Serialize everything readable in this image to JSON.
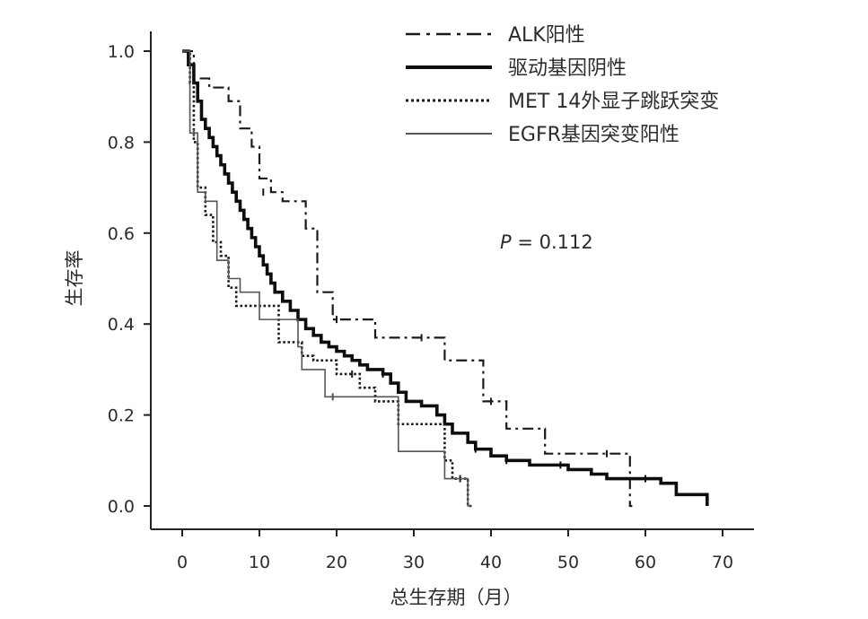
{
  "chart_data": {
    "type": "line",
    "xlabel": "总生存期（月）",
    "ylabel": "生存率",
    "xlim": [
      0,
      75
    ],
    "ylim": [
      0,
      1.05
    ],
    "x_ticks": [
      "0",
      "10",
      "20",
      "30",
      "40",
      "50",
      "60",
      "70"
    ],
    "y_ticks": [
      "0.0",
      "0.2",
      "0.4",
      "0.6",
      "0.8",
      "1.0"
    ],
    "grid": false,
    "legend_position": "top-right",
    "annotation": {
      "label": "P",
      "text": " = 0.112"
    },
    "series": [
      {
        "name": "ALK阳性",
        "style": "dashdot",
        "color": "#1a1a1a",
        "steps": [
          [
            0,
            1.0
          ],
          [
            1.5,
            0.94
          ],
          [
            3.5,
            0.92
          ],
          [
            6,
            0.89
          ],
          [
            7.5,
            0.83
          ],
          [
            9,
            0.79
          ],
          [
            10,
            0.72
          ],
          [
            11.5,
            0.69
          ],
          [
            13,
            0.67
          ],
          [
            16,
            0.61
          ],
          [
            17.5,
            0.47
          ],
          [
            19.5,
            0.41
          ],
          [
            25,
            0.37
          ],
          [
            34,
            0.32
          ],
          [
            39,
            0.23
          ],
          [
            42,
            0.17
          ],
          [
            47,
            0.115
          ],
          [
            58,
            0.0
          ],
          [
            58.3,
            0.0
          ]
        ],
        "censors": [
          [
            10.5,
            0.69
          ],
          [
            20,
            0.41
          ],
          [
            31,
            0.37
          ],
          [
            40,
            0.23
          ],
          [
            55,
            0.115
          ]
        ]
      },
      {
        "name": "驱动基因阴性",
        "style": "solid-thick",
        "color": "#0d0d0d",
        "steps": [
          [
            0,
            1.0
          ],
          [
            0.8,
            0.97
          ],
          [
            1.5,
            0.93
          ],
          [
            2,
            0.89
          ],
          [
            2.5,
            0.85
          ],
          [
            3,
            0.83
          ],
          [
            3.5,
            0.81
          ],
          [
            4,
            0.79
          ],
          [
            4.5,
            0.77
          ],
          [
            5,
            0.75
          ],
          [
            5.5,
            0.73
          ],
          [
            6,
            0.71
          ],
          [
            6.5,
            0.69
          ],
          [
            7,
            0.67
          ],
          [
            7.5,
            0.65
          ],
          [
            8,
            0.63
          ],
          [
            8.5,
            0.61
          ],
          [
            9,
            0.59
          ],
          [
            9.5,
            0.57
          ],
          [
            10,
            0.55
          ],
          [
            10.5,
            0.53
          ],
          [
            11,
            0.51
          ],
          [
            11.5,
            0.49
          ],
          [
            12,
            0.47
          ],
          [
            13,
            0.45
          ],
          [
            14,
            0.43
          ],
          [
            15,
            0.41
          ],
          [
            16,
            0.39
          ],
          [
            17,
            0.375
          ],
          [
            18,
            0.36
          ],
          [
            19,
            0.35
          ],
          [
            20,
            0.34
          ],
          [
            21,
            0.33
          ],
          [
            22,
            0.32
          ],
          [
            23,
            0.31
          ],
          [
            24,
            0.3
          ],
          [
            26,
            0.29
          ],
          [
            27,
            0.27
          ],
          [
            28,
            0.25
          ],
          [
            29,
            0.23
          ],
          [
            31,
            0.22
          ],
          [
            33,
            0.2
          ],
          [
            34,
            0.18
          ],
          [
            35,
            0.16
          ],
          [
            37,
            0.14
          ],
          [
            38,
            0.125
          ],
          [
            40,
            0.11
          ],
          [
            42,
            0.1
          ],
          [
            45,
            0.09
          ],
          [
            50,
            0.08
          ],
          [
            53,
            0.07
          ],
          [
            55,
            0.06
          ],
          [
            62,
            0.05
          ],
          [
            64,
            0.025
          ],
          [
            68,
            0.0
          ]
        ],
        "censors": [
          [
            26,
            0.29
          ],
          [
            38,
            0.125
          ],
          [
            42,
            0.1
          ],
          [
            49,
            0.09
          ],
          [
            60,
            0.06
          ]
        ]
      },
      {
        "name": "MET 14外显子跳跃突变",
        "style": "dotted",
        "color": "#1a1a1a",
        "steps": [
          [
            0,
            1.0
          ],
          [
            1,
            0.93
          ],
          [
            1.5,
            0.8
          ],
          [
            2,
            0.7
          ],
          [
            3,
            0.64
          ],
          [
            4,
            0.58
          ],
          [
            5,
            0.55
          ],
          [
            6,
            0.48
          ],
          [
            7,
            0.44
          ],
          [
            12.5,
            0.36
          ],
          [
            15.5,
            0.33
          ],
          [
            17,
            0.32
          ],
          [
            20,
            0.29
          ],
          [
            23,
            0.26
          ],
          [
            25,
            0.23
          ],
          [
            28,
            0.18
          ],
          [
            34,
            0.1
          ],
          [
            35,
            0.06
          ],
          [
            37,
            0.0
          ],
          [
            37.6,
            0.0
          ]
        ],
        "censors": [
          [
            22,
            0.29
          ],
          [
            36,
            0.06
          ]
        ]
      },
      {
        "name": "EGFR基因突变阳性",
        "style": "solid-thin",
        "color": "#555555",
        "steps": [
          [
            0,
            1.0
          ],
          [
            1,
            0.82
          ],
          [
            2,
            0.69
          ],
          [
            3,
            0.67
          ],
          [
            4.5,
            0.54
          ],
          [
            6,
            0.5
          ],
          [
            7.5,
            0.47
          ],
          [
            10,
            0.41
          ],
          [
            15,
            0.35
          ],
          [
            15.5,
            0.3
          ],
          [
            18.5,
            0.24
          ],
          [
            28,
            0.12
          ],
          [
            34,
            0.06
          ],
          [
            37,
            0.0
          ],
          [
            37.4,
            0.0
          ]
        ],
        "censors": [
          [
            1.5,
            0.82
          ],
          [
            19.5,
            0.24
          ]
        ]
      }
    ]
  }
}
